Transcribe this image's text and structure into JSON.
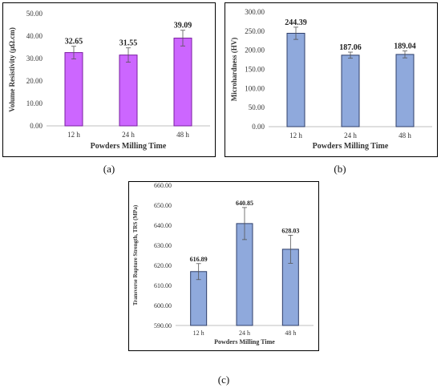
{
  "chart_data": [
    {
      "type": "bar",
      "categories": [
        "12 h",
        "24 h",
        "48 h"
      ],
      "values": [
        32.65,
        31.55,
        39.09
      ],
      "data_labels": [
        "32.65",
        "31.55",
        "39.09"
      ],
      "errors": [
        2.8,
        3.2,
        3.5
      ],
      "ylabel": "Volume Resistivity (μΩ.cm)",
      "xlabel": "Powders Milling Time",
      "ylim": [
        0,
        50
      ],
      "yticks": [
        "0.00",
        "10.00",
        "20.00",
        "30.00",
        "40.00",
        "50.00"
      ],
      "bar_color": "#cc66ff",
      "bar_edge": "#7a1fa0",
      "caption": "(a)"
    },
    {
      "type": "bar",
      "categories": [
        "12 h",
        "24 h",
        "48 h"
      ],
      "values": [
        244.39,
        187.06,
        189.04
      ],
      "data_labels": [
        "244.39",
        "187.06",
        "189.04"
      ],
      "errors": [
        16,
        8,
        9
      ],
      "ylabel": "Microhardness (HV)",
      "xlabel": "Powders Milling Time",
      "ylim": [
        0,
        300
      ],
      "yticks": [
        "0.00",
        "50.00",
        "100.00",
        "150.00",
        "200.00",
        "250.00",
        "300.00"
      ],
      "bar_color": "#8fa9dc",
      "bar_edge": "#2f3f6a",
      "caption": "(b)"
    },
    {
      "type": "bar",
      "categories": [
        "12 h",
        "24 h",
        "48 h"
      ],
      "values": [
        616.89,
        640.85,
        628.03
      ],
      "data_labels": [
        "616.89",
        "640.85",
        "628.03"
      ],
      "errors": [
        4,
        8,
        7
      ],
      "ylabel": "Transverse Rupture Strength, TRS (MPa)",
      "xlabel": "Powders Milling Time",
      "ylim": [
        590,
        660
      ],
      "yticks": [
        "590.00",
        "600.00",
        "610.00",
        "620.00",
        "630.00",
        "640.00",
        "650.00",
        "660.00"
      ],
      "bar_color": "#8fa9dc",
      "bar_edge": "#2f3f6a",
      "caption": "(c)"
    }
  ]
}
